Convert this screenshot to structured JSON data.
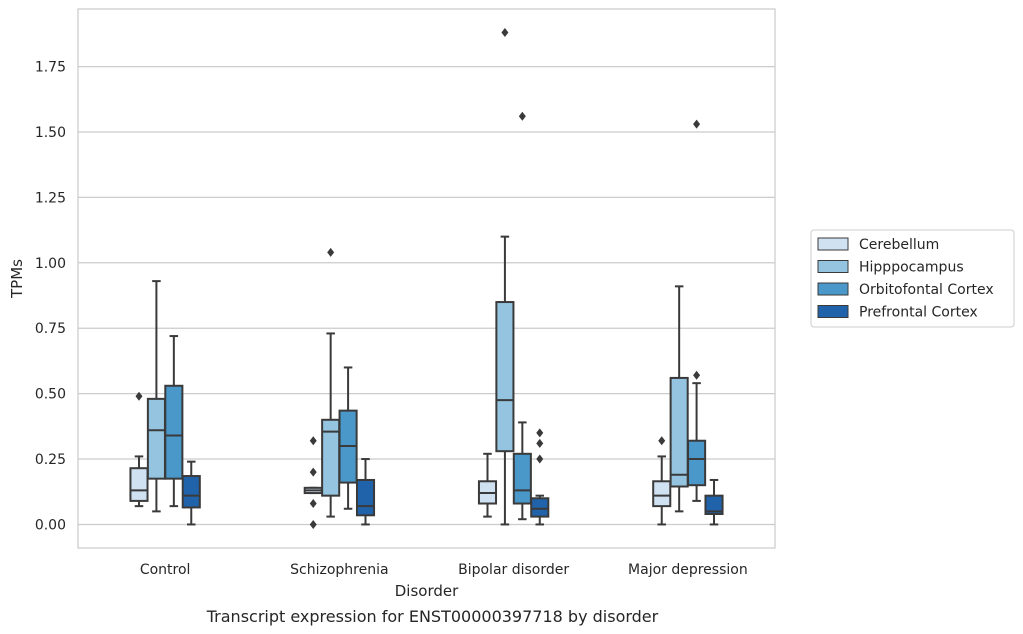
{
  "chart_data": {
    "type": "box",
    "caption": "Transcript expression for ENST00000397718 by disorder",
    "xlabel": "Disorder",
    "ylabel": "TPMs",
    "ylim": [
      -0.09,
      1.97
    ],
    "yticks": [
      0.0,
      0.25,
      0.5,
      0.75,
      1.0,
      1.25,
      1.5,
      1.75
    ],
    "ytick_labels": [
      "0.00",
      "0.25",
      "0.50",
      "0.75",
      "1.00",
      "1.25",
      "1.50",
      "1.75"
    ],
    "grid": true,
    "legend_position": "right",
    "categories": [
      "Control",
      "Schizophrenia",
      "Bipolar disorder",
      "Major depression"
    ],
    "series": [
      {
        "name": "Cerebellum",
        "color": "#d0e1f2",
        "boxes": [
          {
            "whislo": 0.07,
            "q1": 0.09,
            "med": 0.13,
            "q3": 0.215,
            "whishi": 0.26,
            "fliers": [
              0.49
            ]
          },
          {
            "whislo": 0.12,
            "q1": 0.12,
            "med": 0.13,
            "q3": 0.14,
            "whishi": 0.14,
            "fliers": [
              0.32,
              0.2,
              0.08,
              0.0
            ]
          },
          {
            "whislo": 0.03,
            "q1": 0.08,
            "med": 0.12,
            "q3": 0.165,
            "whishi": 0.27,
            "fliers": []
          },
          {
            "whislo": 0.0,
            "q1": 0.07,
            "med": 0.11,
            "q3": 0.165,
            "whishi": 0.26,
            "fliers": [
              0.32
            ]
          }
        ]
      },
      {
        "name": "Hipppocampus",
        "color": "#94c4df",
        "boxes": [
          {
            "whislo": 0.05,
            "q1": 0.175,
            "med": 0.36,
            "q3": 0.48,
            "whishi": 0.93,
            "fliers": []
          },
          {
            "whislo": 0.03,
            "q1": 0.11,
            "med": 0.355,
            "q3": 0.4,
            "whishi": 0.73,
            "fliers": [
              1.04
            ]
          },
          {
            "whislo": 0.0,
            "q1": 0.28,
            "med": 0.475,
            "q3": 0.85,
            "whishi": 1.1,
            "fliers": [
              1.88
            ]
          },
          {
            "whislo": 0.05,
            "q1": 0.145,
            "med": 0.19,
            "q3": 0.56,
            "whishi": 0.91,
            "fliers": []
          }
        ]
      },
      {
        "name": "Orbitofontal Cortex",
        "color": "#4a98c9",
        "boxes": [
          {
            "whislo": 0.07,
            "q1": 0.175,
            "med": 0.34,
            "q3": 0.53,
            "whishi": 0.72,
            "fliers": []
          },
          {
            "whislo": 0.06,
            "q1": 0.16,
            "med": 0.3,
            "q3": 0.435,
            "whishi": 0.6,
            "fliers": []
          },
          {
            "whislo": 0.02,
            "q1": 0.08,
            "med": 0.13,
            "q3": 0.27,
            "whishi": 0.39,
            "fliers": [
              1.56
            ]
          },
          {
            "whislo": 0.09,
            "q1": 0.15,
            "med": 0.25,
            "q3": 0.32,
            "whishi": 0.54,
            "fliers": [
              0.57,
              1.53
            ]
          }
        ]
      },
      {
        "name": "Prefrontal Cortex",
        "color": "#2163aa",
        "boxes": [
          {
            "whislo": 0.0,
            "q1": 0.065,
            "med": 0.11,
            "q3": 0.185,
            "whishi": 0.24,
            "fliers": []
          },
          {
            "whislo": 0.0,
            "q1": 0.035,
            "med": 0.07,
            "q3": 0.17,
            "whishi": 0.25,
            "fliers": []
          },
          {
            "whislo": 0.0,
            "q1": 0.03,
            "med": 0.06,
            "q3": 0.1,
            "whishi": 0.11,
            "fliers": [
              0.35,
              0.31,
              0.25
            ]
          },
          {
            "whislo": 0.0,
            "q1": 0.04,
            "med": 0.05,
            "q3": 0.11,
            "whishi": 0.17,
            "fliers": []
          }
        ]
      }
    ]
  }
}
